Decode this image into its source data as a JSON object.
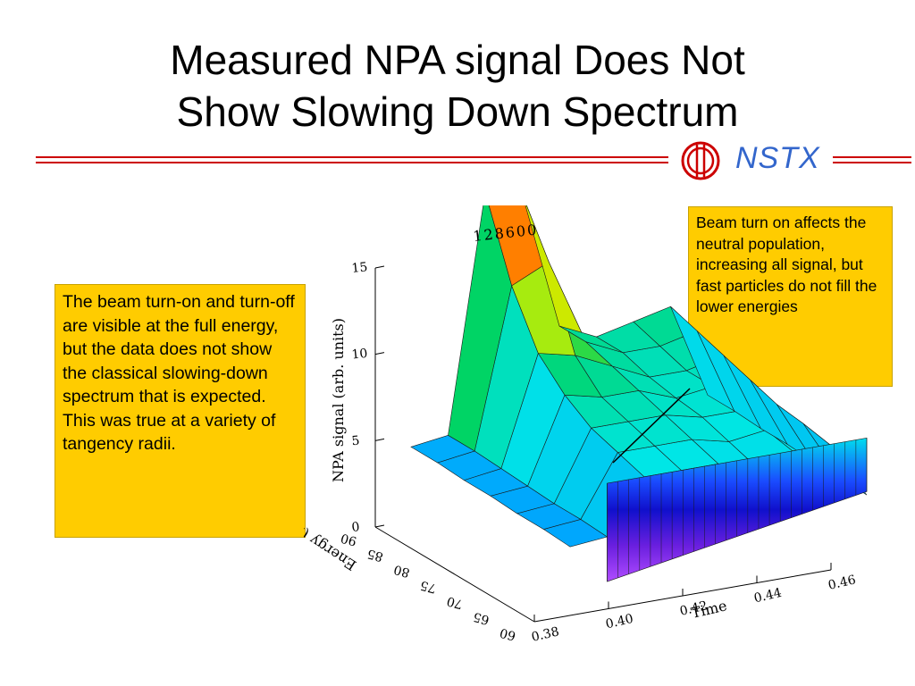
{
  "slide": {
    "title_line1": "Measured NPA signal Does Not",
    "title_line2": "Show Slowing Down Spectrum",
    "logo_text": "NSTX"
  },
  "notes": {
    "left": "The beam turn-on and turn-off are visible at the full energy, but the data does not show the classical slowing-down spectrum that is expected.  This was true at a variety of tangency radii.",
    "right": "Beam turn on affects the neutral population, increasing all signal, but fast particles do not fill the lower energies"
  },
  "chart_data": {
    "type": "surface",
    "title": "128600",
    "zlabel": "NPA signal (arb. units)",
    "xlabel": "Time",
    "ylabel": "Energy (keV)",
    "z_ticks": [
      "0",
      "5",
      "10",
      "15"
    ],
    "zlim": [
      0,
      15
    ],
    "time_ticks": [
      "0.38",
      "0.40",
      "0.42",
      "0.44",
      "0.46"
    ],
    "xlim": [
      0.38,
      0.46
    ],
    "energy_ticks": [
      "90",
      "85",
      "80",
      "75",
      "70",
      "65",
      "60"
    ],
    "ylim": [
      60,
      90
    ],
    "energies": [
      90,
      85,
      80,
      75,
      70,
      65,
      60
    ],
    "times": [
      0.38,
      0.39,
      0.4,
      0.41,
      0.42,
      0.43,
      0.44,
      0.45,
      0.46
    ],
    "z": [
      [
        0.5,
        0.8,
        14.5,
        14.0,
        6.0,
        5.0,
        5.5,
        6.0,
        0.5
      ],
      [
        0.5,
        0.8,
        10.0,
        11.0,
        6.0,
        5.0,
        5.0,
        5.5,
        0.5
      ],
      [
        0.4,
        0.7,
        7.0,
        6.5,
        5.5,
        4.5,
        4.5,
        5.0,
        0.4
      ],
      [
        0.4,
        0.6,
        5.5,
        5.0,
        5.0,
        4.2,
        4.5,
        4.5,
        0.4
      ],
      [
        0.3,
        0.5,
        4.5,
        4.5,
        4.5,
        4.0,
        4.0,
        4.0,
        0.3
      ],
      [
        0.3,
        0.5,
        4.0,
        4.0,
        4.0,
        3.5,
        3.8,
        3.8,
        0.3
      ],
      [
        0.2,
        0.4,
        3.5,
        3.5,
        3.5,
        3.0,
        3.5,
        3.5,
        0.2
      ]
    ]
  },
  "colors": {
    "accent_red": "#cc0000",
    "note_fill": "#ffcc00",
    "logo_blue": "#3366cc"
  }
}
